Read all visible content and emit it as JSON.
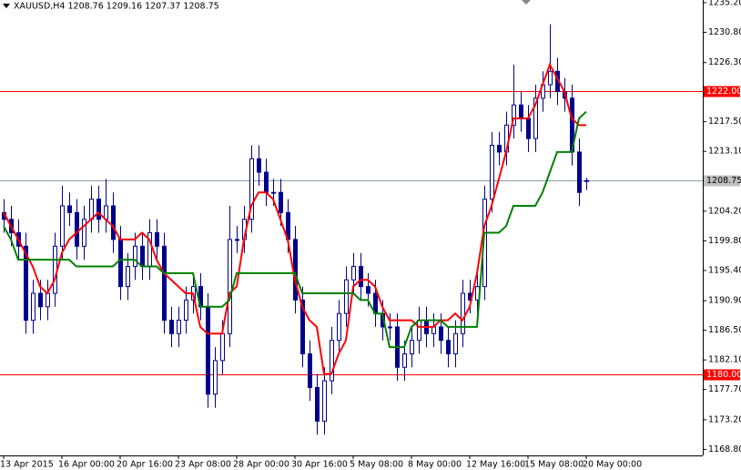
{
  "chart_data": {
    "type": "candlestick",
    "title": "XAUUSD,H4  1208.76 1209.16 1207.37 1208.75",
    "categories": [
      "13 Apr 2015",
      null,
      null,
      null,
      null,
      null,
      null,
      null,
      "16 Apr 00:00",
      null,
      null,
      null,
      null,
      null,
      null,
      null,
      "20 Apr 16:00",
      null,
      null,
      null,
      null,
      null,
      null,
      null,
      "23 Apr 08:00",
      null,
      null,
      null,
      null,
      null,
      null,
      null,
      "28 Apr 00:00",
      null,
      null,
      null,
      null,
      null,
      null,
      null,
      "30 Apr 16:00",
      null,
      null,
      null,
      null,
      null,
      null,
      null,
      "5 May 08:00",
      null,
      null,
      null,
      null,
      null,
      null,
      null,
      "8 May 00:00",
      null,
      null,
      null,
      null,
      null,
      null,
      null,
      "12 May 16:00",
      null,
      null,
      null,
      null,
      null,
      null,
      null,
      "15 May 08:00",
      null,
      null,
      null,
      null,
      null,
      null,
      null,
      "20 May 00:00"
    ],
    "open": [
      1204,
      1203,
      1201,
      1199,
      1188,
      1192,
      1190,
      1192,
      1199,
      1205,
      1204,
      1199,
      1203,
      1206,
      1203,
      1205,
      1200,
      1193,
      1196,
      1199,
      1196,
      1201,
      1199,
      1188,
      1186,
      1188,
      1191,
      1193,
      1190,
      1177,
      1182,
      1186,
      1200,
      1200,
      1203,
      1212,
      1210,
      1207,
      1207,
      1204,
      1200,
      1191,
      1183,
      1178,
      1173,
      1179,
      1185,
      1189,
      1194,
      1196,
      1193,
      1192,
      1189,
      1187,
      1187,
      1181,
      1183,
      1185,
      1188,
      1186,
      1187,
      1185,
      1183,
      1186,
      1192,
      1191,
      1193,
      1206,
      1214,
      1213,
      1217,
      1220,
      1218,
      1215,
      1221,
      1223,
      1225,
      1222,
      1221,
      1213,
      1208.76
    ],
    "high": [
      1206,
      1205,
      1203,
      1201,
      1194,
      1194,
      1194,
      1201,
      1208,
      1207,
      1206,
      1205,
      1208,
      1208,
      1209,
      1207,
      1202,
      1198,
      1201,
      1201,
      1203,
      1203,
      1201,
      1190,
      1190,
      1193,
      1195,
      1195,
      1192,
      1184,
      1188,
      1205,
      1202,
      1205,
      1214,
      1214,
      1212,
      1209,
      1209,
      1206,
      1202,
      1193,
      1185,
      1180,
      1181,
      1187,
      1191,
      1196,
      1198,
      1198,
      1195,
      1194,
      1191,
      1189,
      1189,
      1185,
      1187,
      1190,
      1190,
      1189,
      1189,
      1187,
      1188,
      1194,
      1194,
      1195,
      1208,
      1216,
      1216,
      1219,
      1226,
      1222,
      1220,
      1223,
      1225,
      1232,
      1227,
      1224,
      1223,
      1215,
      1209.16
    ],
    "low": [
      1201,
      1199,
      1197,
      1186,
      1186,
      1188,
      1188,
      1190,
      1197,
      1202,
      1197,
      1197,
      1201,
      1201,
      1201,
      1198,
      1191,
      1191,
      1194,
      1194,
      1194,
      1197,
      1186,
      1184,
      1184,
      1186,
      1189,
      1188,
      1175,
      1175,
      1180,
      1184,
      1198,
      1198,
      1201,
      1208,
      1205,
      1205,
      1202,
      1198,
      1189,
      1181,
      1176,
      1171,
      1171,
      1177,
      1183,
      1187,
      1192,
      1191,
      1190,
      1187,
      1185,
      1185,
      1179,
      1179,
      1181,
      1183,
      1184,
      1184,
      1183,
      1181,
      1181,
      1184,
      1189,
      1189,
      1191,
      1204,
      1211,
      1211,
      1215,
      1216,
      1213,
      1213,
      1219,
      1221,
      1220,
      1219,
      1211,
      1205,
      1207.37
    ],
    "close": [
      1203,
      1201,
      1199,
      1188,
      1192,
      1190,
      1192,
      1199,
      1205,
      1204,
      1199,
      1203,
      1206,
      1203,
      1205,
      1200,
      1193,
      1196,
      1199,
      1196,
      1201,
      1199,
      1188,
      1186,
      1188,
      1191,
      1193,
      1190,
      1177,
      1182,
      1186,
      1200,
      1200,
      1203,
      1212,
      1210,
      1207,
      1207,
      1204,
      1200,
      1191,
      1183,
      1178,
      1173,
      1179,
      1185,
      1189,
      1194,
      1196,
      1193,
      1192,
      1189,
      1187,
      1187,
      1181,
      1183,
      1185,
      1188,
      1186,
      1187,
      1185,
      1183,
      1186,
      1192,
      1191,
      1193,
      1206,
      1214,
      1213,
      1217,
      1220,
      1218,
      1215,
      1221,
      1223,
      1225,
      1222,
      1221,
      1213,
      1207,
      1208.75
    ],
    "candle_color": "#00008b",
    "lines": [
      {
        "color": "#ff0000",
        "values": [
          1204,
          1202,
          1200,
          1198,
          1196,
          1193,
          1192,
          1194,
          1198,
          1200,
          1201,
          1202,
          1203,
          1204,
          1203,
          1202,
          1200,
          1200,
          1200,
          1201,
          1200,
          1197,
          1195,
          1194,
          1193,
          1192,
          1192,
          1187,
          1186,
          1186,
          1186,
          1192,
          1193,
          1200,
          1205,
          1207,
          1207,
          1206,
          1203,
          1200,
          1194,
          1190,
          1188,
          1187,
          1180,
          1180,
          1183,
          1185,
          1193,
          1194,
          1194,
          1193,
          1190,
          1188,
          1188,
          1188,
          1188,
          1187,
          1187,
          1187,
          1188,
          1188,
          1189,
          1188,
          1190,
          1195,
          1202,
          1205,
          1209,
          1213,
          1218,
          1218,
          1218,
          1220,
          1223,
          1226,
          1224,
          1222,
          1218,
          1217,
          1217
        ]
      },
      {
        "color": "#008000",
        "values": [
          1202,
          1200,
          1197,
          1197,
          1197,
          1197,
          1197,
          1197,
          1197,
          1197,
          1196,
          1196,
          1196,
          1196,
          1196,
          1196,
          1197,
          1197,
          1197,
          1196,
          1196,
          1196,
          1195,
          1195,
          1195,
          1195,
          1195,
          1190,
          1190,
          1190,
          1190,
          1191,
          1195,
          1195,
          1195,
          1195,
          1195,
          1195,
          1195,
          1195,
          1195,
          1192,
          1192,
          1192,
          1192,
          1192,
          1192,
          1192,
          1192,
          1191,
          1191,
          1189,
          1189,
          1184,
          1184,
          1184,
          1187,
          1188,
          1188,
          1188,
          1188,
          1187,
          1187,
          1187,
          1187,
          1187,
          1201,
          1201,
          1201,
          1202,
          1205,
          1205,
          1205,
          1205,
          1207,
          1210,
          1213,
          1213,
          1213,
          1218,
          1219
        ]
      }
    ],
    "hlines": {
      "values": [
        1222,
        1180
      ],
      "value_labels": [
        "1222.00",
        "1180.00"
      ],
      "color": "#ff0000"
    },
    "last_price": 1208.75,
    "ylim": [
      1167.9,
      1235.6
    ],
    "yticks": [
      {
        "value": 1235.2,
        "label": "1235.20"
      },
      {
        "value": 1230.8,
        "label": "1230.80"
      },
      {
        "value": 1226.3,
        "label": "1226.30"
      },
      {
        "value": 1217.5,
        "label": "1217.50"
      },
      {
        "value": 1213.1,
        "label": "1213.10"
      },
      {
        "value": 1204.2,
        "label": "1204.20"
      },
      {
        "value": 1199.8,
        "label": "1199.80"
      },
      {
        "value": 1195.4,
        "label": "1195.40"
      },
      {
        "value": 1190.9,
        "label": "1190.90"
      },
      {
        "value": 1186.5,
        "label": "1186.50"
      },
      {
        "value": 1182.1,
        "label": "1182.10"
      },
      {
        "value": 1177.7,
        "label": "1177.70"
      },
      {
        "value": 1173.2,
        "label": "1173.20"
      },
      {
        "value": 1168.8,
        "label": "1168.80"
      }
    ]
  }
}
